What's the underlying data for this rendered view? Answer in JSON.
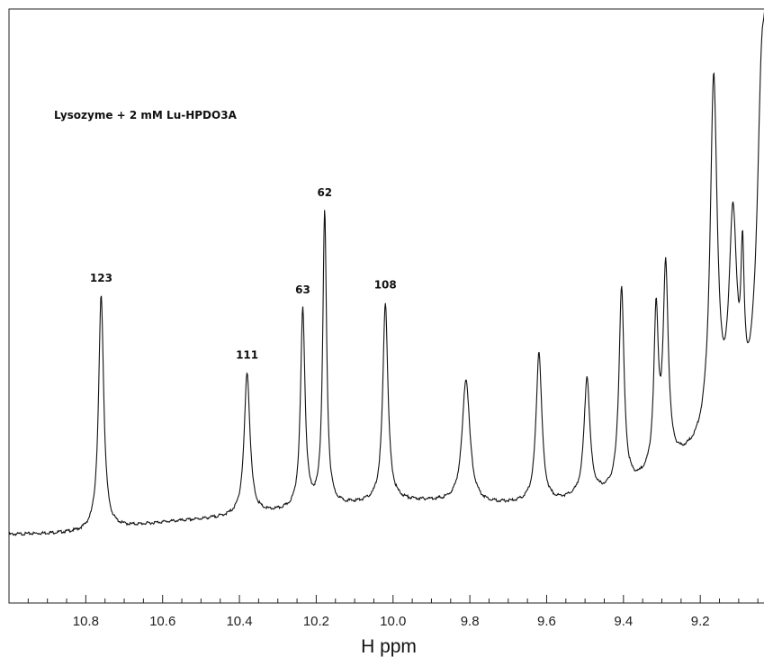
{
  "chart_data": {
    "type": "line",
    "title": "Lysozyme + 2 mM Lu-HPDO3A",
    "xlabel": "H ppm",
    "ylabel": "",
    "x_reversed": true,
    "xlim": [
      11.0,
      9.02
    ],
    "ylim": [
      0,
      1
    ],
    "grid": false,
    "x_ticks": [
      "10.8",
      "10.6",
      "10.4",
      "10.2",
      "10.0",
      "9.8",
      "9.6",
      "9.4",
      "9.2"
    ],
    "baseline": {
      "x": [
        11.0,
        10.82,
        10.6,
        10.4,
        10.25,
        10.1,
        10.0,
        9.9,
        9.8,
        9.7,
        9.6,
        9.4,
        9.2,
        9.02
      ],
      "y": [
        0.115,
        0.118,
        0.135,
        0.145,
        0.155,
        0.165,
        0.17,
        0.17,
        0.165,
        0.165,
        0.165,
        0.185,
        0.25,
        0.3
      ]
    },
    "peaks": [
      {
        "x": 10.76,
        "height": 0.395,
        "width": 0.008,
        "label": "123"
      },
      {
        "x": 10.38,
        "height": 0.24,
        "width": 0.009,
        "label": "111"
      },
      {
        "x": 10.235,
        "height": 0.335,
        "width": 0.007,
        "label": "63"
      },
      {
        "x": 10.178,
        "height": 0.495,
        "width": 0.006,
        "label": "62"
      },
      {
        "x": 10.02,
        "height": 0.335,
        "width": 0.008,
        "label": "108"
      },
      {
        "x": 9.81,
        "height": 0.21,
        "width": 0.012,
        "label": ""
      },
      {
        "x": 9.62,
        "height": 0.255,
        "width": 0.009,
        "label": ""
      },
      {
        "x": 9.495,
        "height": 0.2,
        "width": 0.009,
        "label": ""
      },
      {
        "x": 9.405,
        "height": 0.34,
        "width": 0.008,
        "label": ""
      },
      {
        "x": 9.315,
        "height": 0.26,
        "width": 0.007,
        "label": ""
      },
      {
        "x": 9.29,
        "height": 0.33,
        "width": 0.008,
        "label": ""
      },
      {
        "x": 9.165,
        "height": 0.6,
        "width": 0.011,
        "label": ""
      },
      {
        "x": 9.115,
        "height": 0.34,
        "width": 0.012,
        "label": ""
      },
      {
        "x": 9.09,
        "height": 0.22,
        "width": 0.005,
        "label": ""
      },
      {
        "x": 9.04,
        "height": 0.5,
        "width": 0.015,
        "label": ""
      },
      {
        "x": 9.025,
        "height": 0.45,
        "width": 0.01,
        "label": ""
      }
    ]
  },
  "colors": {
    "line": "#111111",
    "axis": "#222222",
    "background": "#ffffff"
  }
}
